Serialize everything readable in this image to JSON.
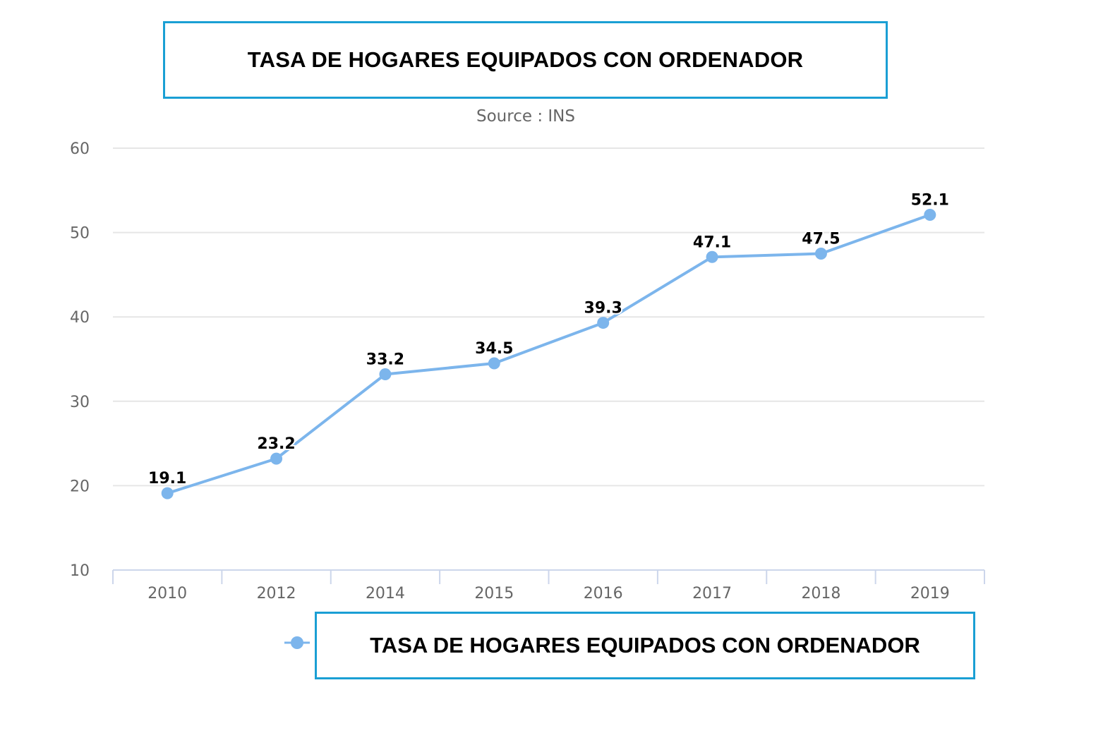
{
  "chart_data": {
    "type": "line",
    "title": "TASA DE HOGARES EQUIPADOS CON ORDENADOR",
    "subtitle": "Source : INS",
    "categories": [
      "2010",
      "2012",
      "2014",
      "2015",
      "2016",
      "2017",
      "2018",
      "2019"
    ],
    "series": [
      {
        "name": "TASA DE HOGARES EQUIPADOS CON ORDENADOR",
        "values": [
          19.1,
          23.2,
          33.2,
          34.5,
          39.3,
          47.1,
          47.5,
          52.1
        ],
        "color": "#7cb5ec"
      }
    ],
    "data_labels": [
      "19.1",
      "23.2",
      "33.2",
      "34.5",
      "39.3",
      "47.1",
      "47.5",
      "52.1"
    ],
    "yticks": [
      "10",
      "20",
      "30",
      "40",
      "50",
      "60"
    ],
    "ylim": [
      10,
      60
    ],
    "grid": true,
    "legend": "bottom-center",
    "colors": {
      "line": "#7cb5ec",
      "grid": "#e6e6e6",
      "axis": "#ccd6eb",
      "frame": "#1a9fd4"
    }
  }
}
